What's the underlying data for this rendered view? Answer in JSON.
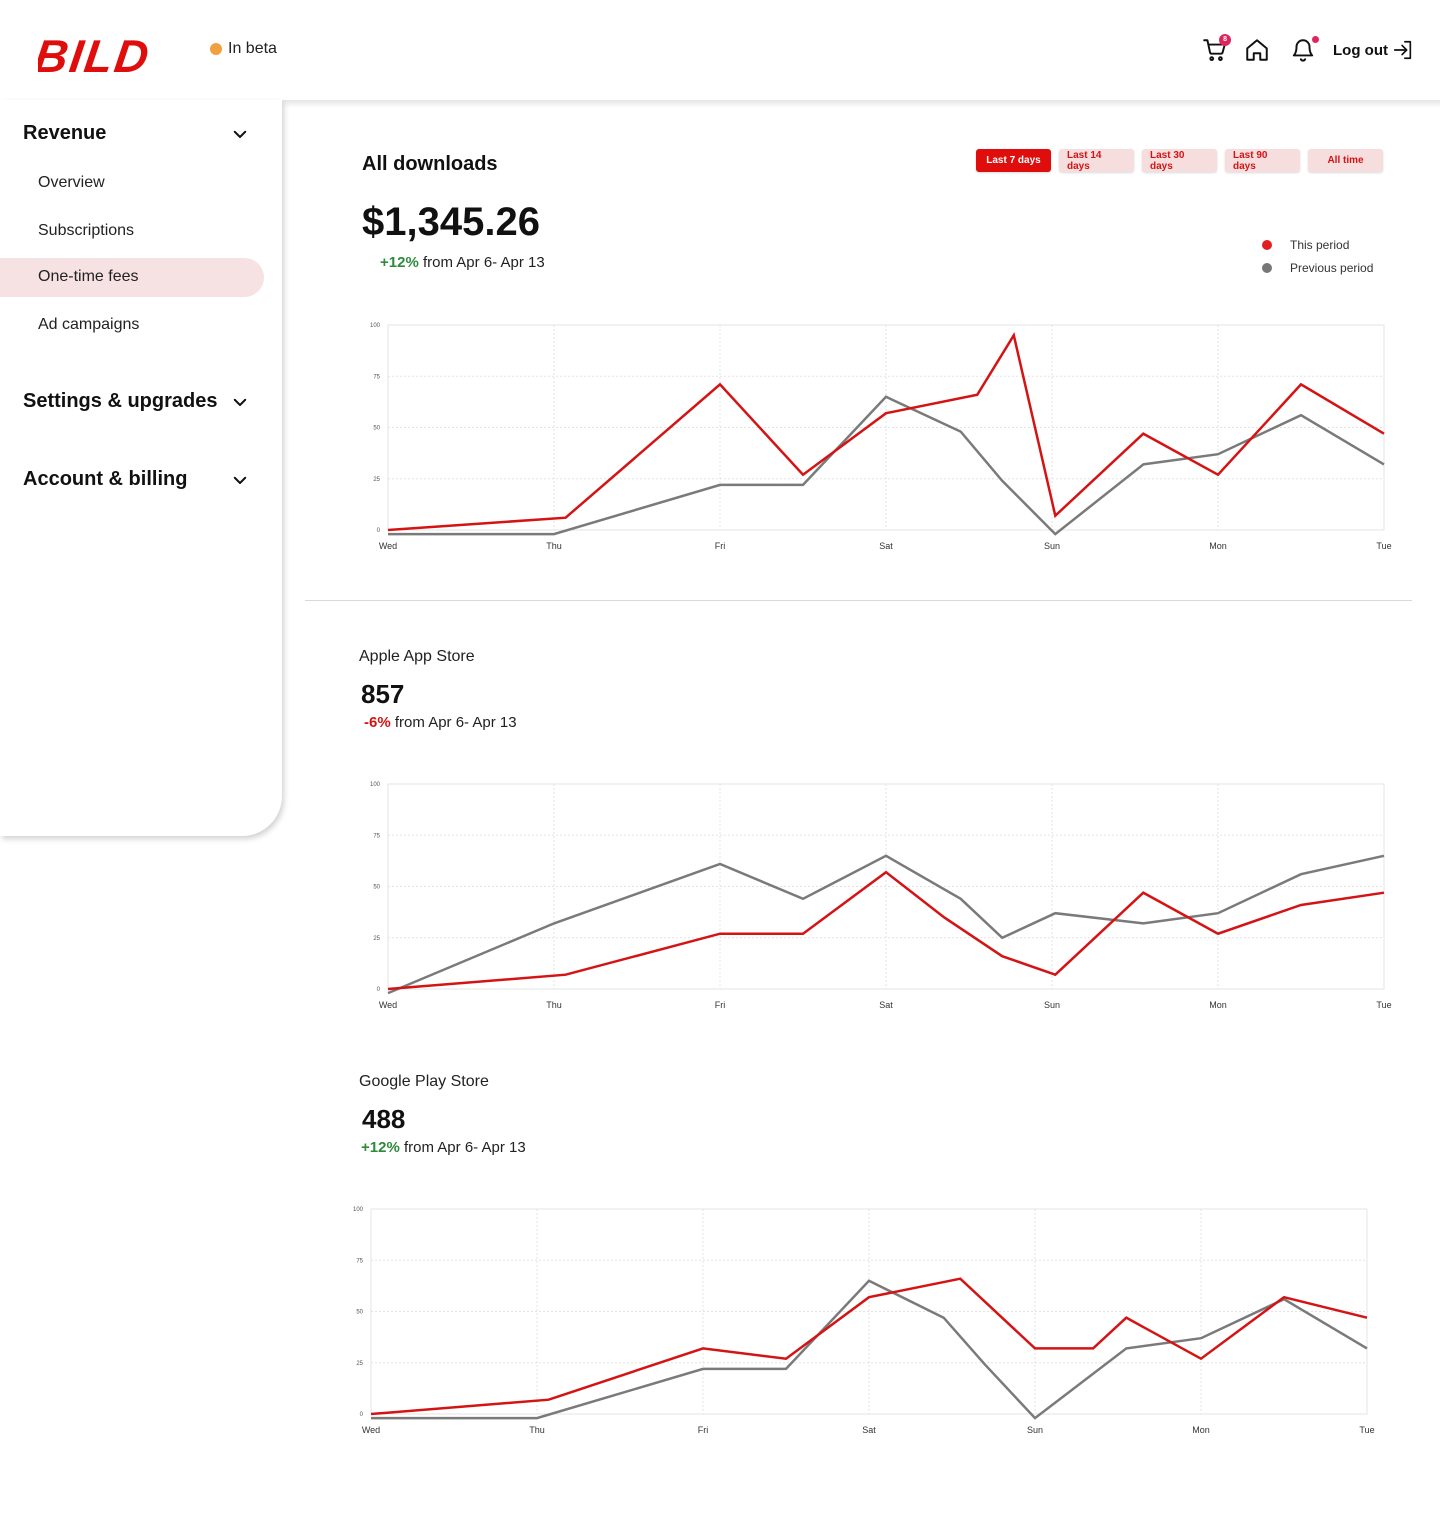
{
  "brand": {
    "logo_text": "BILD",
    "beta_label": "In beta",
    "accent": "#e00d0d"
  },
  "header": {
    "cart_badge": "8",
    "logout_label": "Log out"
  },
  "sidebar": {
    "sections": [
      {
        "label": "Revenue",
        "items": [
          "Overview",
          "Subscriptions",
          "One-time fees",
          "Ad campaigns"
        ],
        "active_item": "One-time fees"
      },
      {
        "label": "Settings & upgrades"
      },
      {
        "label": "Account & billing"
      }
    ]
  },
  "main": {
    "title": "All downloads",
    "total": "$1,345.26",
    "delta": "+12%",
    "delta_suffix": " from Apr 6- Apr 13",
    "range_tabs": [
      "Last 7 days",
      "Last 14 days",
      "Last 30 days",
      "Last 90 days",
      "All time"
    ],
    "active_range": "Last 7 days",
    "legend": [
      {
        "label": "This period",
        "color": "#e02020"
      },
      {
        "label": "Previous period",
        "color": "#777777"
      }
    ]
  },
  "stores": [
    {
      "title": "Apple App Store",
      "value": "857",
      "delta": "-6%",
      "delta_suffix": " from Apr 6- Apr 13",
      "trend": "down"
    },
    {
      "title": "Google Play Store",
      "value": "488",
      "delta": "+12%",
      "delta_suffix": " from Apr 6- Apr 13",
      "trend": "up"
    }
  ],
  "chart_data": [
    {
      "type": "line",
      "id": "all-downloads",
      "x": [
        0,
        1,
        2,
        2.5,
        3,
        3.55,
        3.8,
        4,
        4.55,
        5,
        5.5,
        6
      ],
      "xticks": [
        "Wed",
        "Thu",
        "Fri",
        "Sat",
        "Sun",
        "Mon",
        "Tue"
      ],
      "yticks": [
        "0",
        "25",
        "50",
        "75",
        "100"
      ],
      "ylim": [
        0,
        100
      ],
      "grid": true,
      "series": [
        {
          "name": "This period",
          "color": "#d41414",
          "x": [
            0,
            1.07,
            2,
            2.5,
            3,
            3.55,
            3.77,
            4.02,
            4.55,
            5,
            5.5,
            6
          ],
          "values": [
            0,
            6,
            71,
            27,
            57,
            66,
            95,
            7,
            47,
            27,
            71,
            47
          ]
        },
        {
          "name": "Previous period",
          "color": "#7a7a7a",
          "x": [
            0,
            1,
            2,
            2.5,
            3,
            3.45,
            3.7,
            4.02,
            4.55,
            5,
            5.5,
            6
          ],
          "values": [
            -2,
            -2,
            22,
            22,
            65,
            48,
            24,
            -2,
            32,
            37,
            56,
            32
          ]
        }
      ]
    },
    {
      "type": "line",
      "id": "apple",
      "xticks": [
        "Wed",
        "Thu",
        "Fri",
        "Sat",
        "Sun",
        "Mon",
        "Tue"
      ],
      "yticks": [
        "0",
        "25",
        "50",
        "75",
        "100"
      ],
      "ylim": [
        0,
        100
      ],
      "grid": true,
      "series": [
        {
          "name": "This period",
          "color": "#d41414",
          "x": [
            0,
            1.07,
            2,
            2.5,
            3,
            3.35,
            3.7,
            4.02,
            4.55,
            5,
            5.5,
            6
          ],
          "values": [
            0,
            7,
            27,
            27,
            57,
            35,
            16,
            7,
            47,
            27,
            41,
            47
          ]
        },
        {
          "name": "Previous period",
          "color": "#7a7a7a",
          "x": [
            0,
            1,
            2,
            2.5,
            3,
            3.45,
            3.7,
            4.02,
            4.55,
            5,
            5.5,
            6
          ],
          "values": [
            -2,
            32,
            61,
            44,
            65,
            44,
            25,
            37,
            32,
            37,
            56,
            65
          ]
        }
      ]
    },
    {
      "type": "line",
      "id": "google",
      "xticks": [
        "Wed",
        "Thu",
        "Fri",
        "Sat",
        "Sun",
        "Mon",
        "Tue"
      ],
      "yticks": [
        "0",
        "25",
        "50",
        "75",
        "100"
      ],
      "ylim": [
        0,
        100
      ],
      "grid": true,
      "series": [
        {
          "name": "This period",
          "color": "#d41414",
          "x": [
            0,
            1.07,
            2,
            2.5,
            3,
            3.55,
            4,
            4.35,
            4.55,
            5,
            5.5,
            6
          ],
          "values": [
            0,
            7,
            32,
            27,
            57,
            66,
            32,
            32,
            47,
            27,
            57,
            47
          ]
        },
        {
          "name": "Previous period",
          "color": "#7a7a7a",
          "x": [
            0,
            1,
            2,
            2.5,
            3,
            3.45,
            3.7,
            4,
            4.55,
            5,
            5.5,
            6
          ],
          "values": [
            -2,
            -2,
            22,
            22,
            65,
            47,
            24,
            -2,
            32,
            37,
            56,
            32
          ]
        }
      ]
    }
  ]
}
